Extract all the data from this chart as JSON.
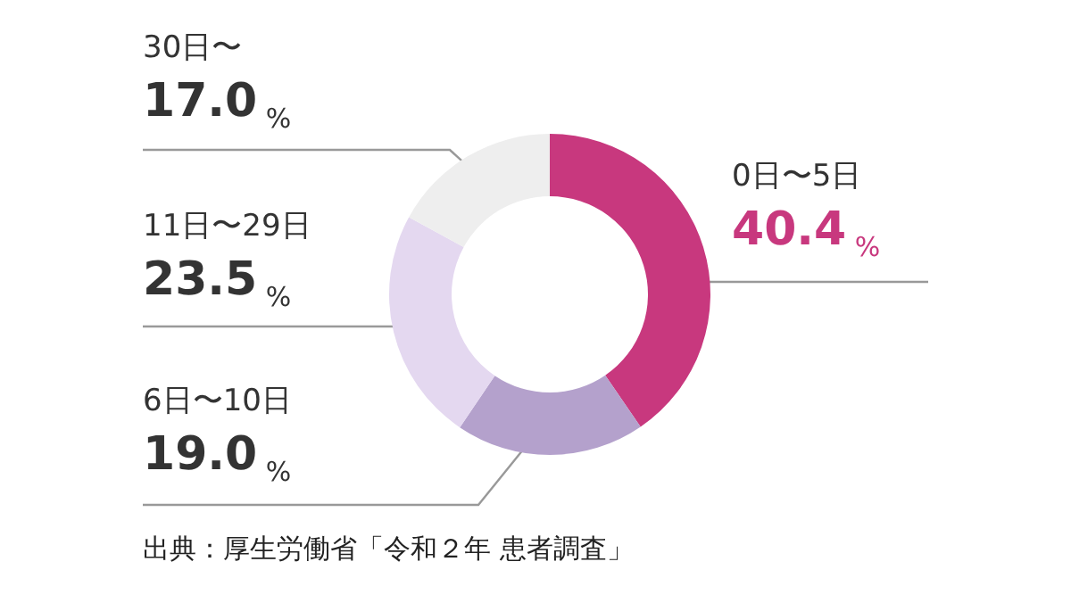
{
  "chart_data": {
    "type": "donut",
    "categories": [
      "0日〜5日",
      "6日〜10日",
      "11日〜29日",
      "30日〜"
    ],
    "values": [
      40.4,
      19.0,
      23.5,
      17.0
    ],
    "value_labels": [
      "40.4%",
      "19.0%",
      "23.5%",
      "17.0%"
    ],
    "colors": [
      "#c8387e",
      "#b4a1cc",
      "#e4d8f0",
      "#eeeeee"
    ],
    "legend": false,
    "annotations": [
      "出典：厚生労働省「令和２年 患者調査」"
    ]
  }
}
